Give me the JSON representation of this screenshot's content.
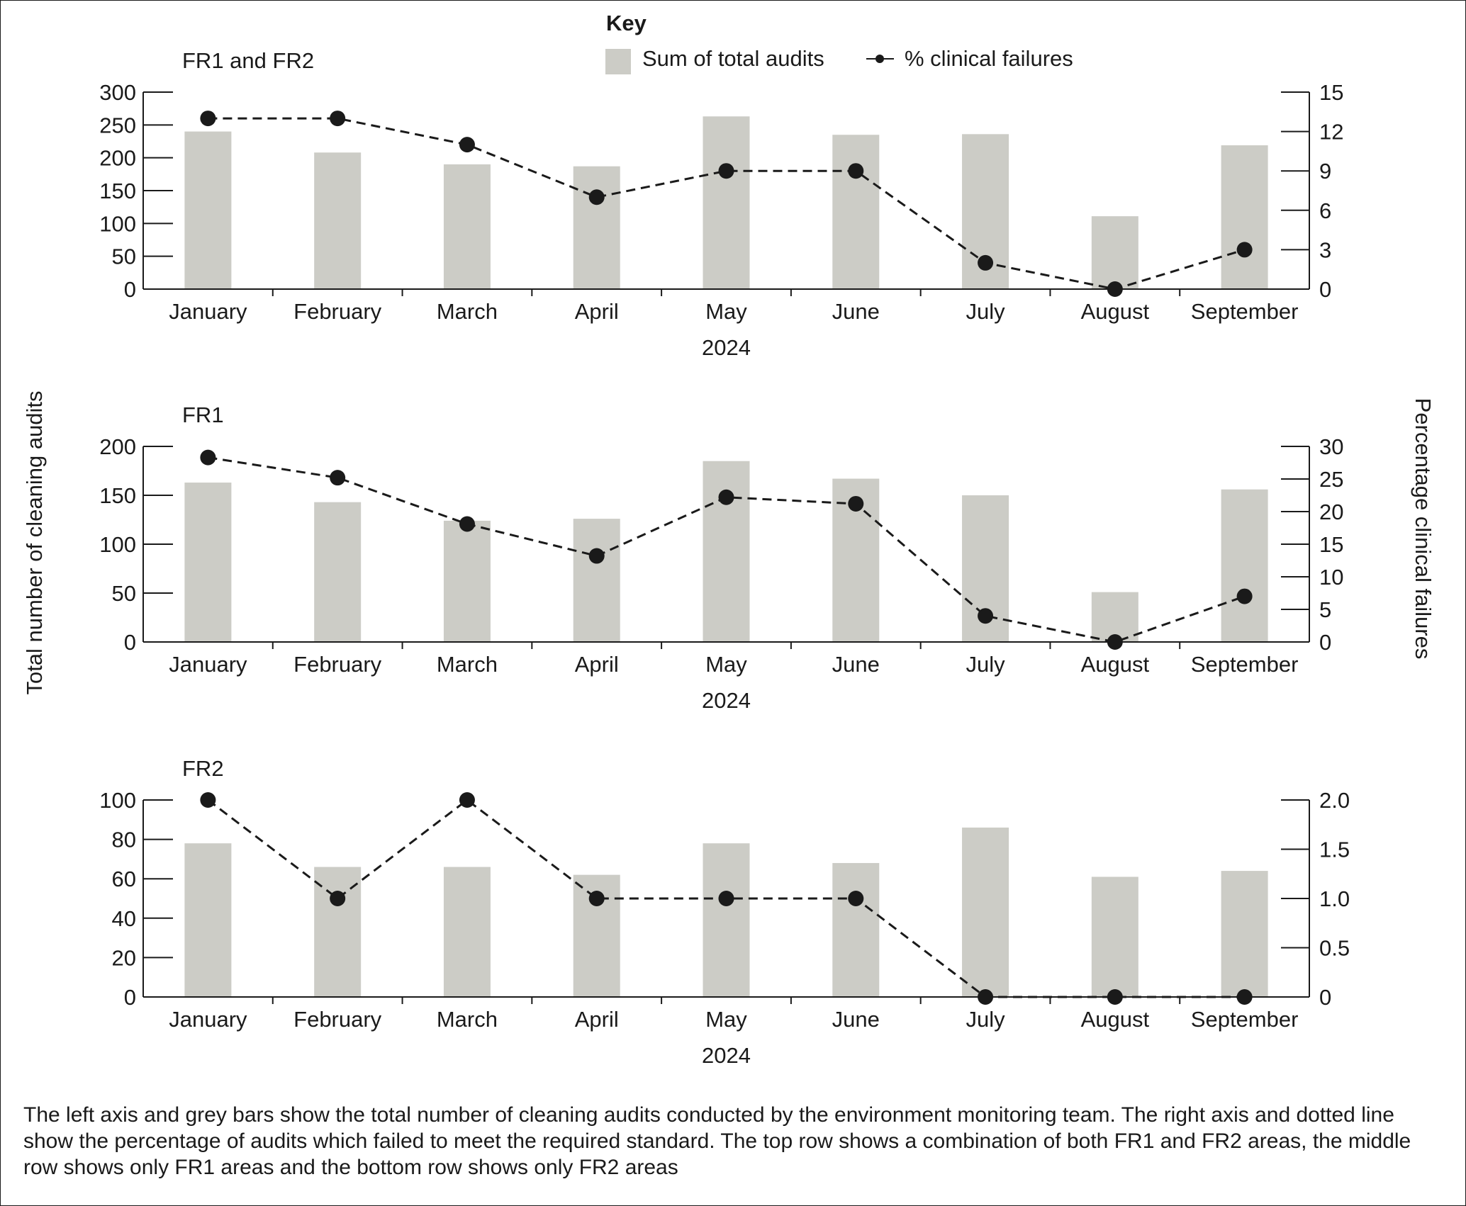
{
  "colors": {
    "bar": "#ccccc6",
    "line": "#1a1a1a",
    "axis": "#1a1a1a"
  },
  "legend": {
    "heading": "Key",
    "bar_label": "Sum of total audits",
    "line_label": "% clinical failures"
  },
  "axis_titles": {
    "left": "Total number of cleaning audits",
    "right": "Percentage clinical failures"
  },
  "caption": "The left axis and grey bars show the total number of cleaning audits conducted by the environment monitoring team. The right axis and dotted line show the percentage of audits which failed to meet the required standard. The top row shows a combination of both FR1 and FR2 areas, the middle row shows only FR1 areas and the bottom row shows only FR2 areas",
  "chart_data": [
    {
      "type": "bar+line",
      "title": "FR1 and FR2",
      "xlabel": "2024",
      "categories": [
        "January",
        "February",
        "March",
        "April",
        "May",
        "June",
        "July",
        "August",
        "September"
      ],
      "bars": {
        "name": "Sum of total audits",
        "values": [
          240,
          208,
          190,
          187,
          263,
          235,
          236,
          111,
          219
        ]
      },
      "line": {
        "name": "% clinical failures",
        "values": [
          13,
          13,
          11,
          7,
          9,
          9,
          2,
          0,
          3
        ]
      },
      "left_axis": {
        "ylim": [
          0,
          300
        ],
        "ticks": [
          0,
          50,
          100,
          150,
          200,
          250,
          300
        ],
        "tick_labels": [
          "0",
          "50",
          "100",
          "150",
          "200",
          "250",
          "300"
        ]
      },
      "right_axis": {
        "ylim": [
          0,
          15
        ],
        "ticks": [
          0,
          3,
          6,
          9,
          12,
          15
        ],
        "tick_labels": [
          "0",
          "3",
          "6",
          "9",
          "12",
          "15"
        ]
      }
    },
    {
      "type": "bar+line",
      "title": "FR1",
      "xlabel": "2024",
      "categories": [
        "January",
        "February",
        "March",
        "April",
        "May",
        "June",
        "July",
        "August",
        "September"
      ],
      "bars": {
        "name": "Sum of total audits",
        "values": [
          163,
          143,
          124,
          126,
          185,
          167,
          150,
          51,
          156
        ]
      },
      "line": {
        "name": "% clinical failures",
        "values": [
          28.3,
          25.2,
          18.1,
          13.2,
          22.2,
          21.2,
          4,
          0,
          7
        ]
      },
      "left_axis": {
        "ylim": [
          0,
          200
        ],
        "ticks": [
          0,
          50,
          100,
          150,
          200
        ],
        "tick_labels": [
          "0",
          "50",
          "100",
          "150",
          "200"
        ]
      },
      "right_axis": {
        "ylim": [
          0,
          30
        ],
        "ticks": [
          0,
          5,
          10,
          15,
          20,
          25,
          30
        ],
        "tick_labels": [
          "0",
          "5",
          "10",
          "15",
          "20",
          "25",
          "30"
        ]
      }
    },
    {
      "type": "bar+line",
      "title": "FR2",
      "xlabel": "2024",
      "categories": [
        "January",
        "February",
        "March",
        "April",
        "May",
        "June",
        "July",
        "August",
        "September"
      ],
      "bars": {
        "name": "Sum of total audits",
        "values": [
          78,
          66,
          66,
          62,
          78,
          68,
          86,
          61,
          64
        ]
      },
      "line": {
        "name": "% clinical failures",
        "values": [
          2,
          1,
          2,
          1,
          1,
          1,
          0,
          0,
          0
        ]
      },
      "left_axis": {
        "ylim": [
          0,
          100
        ],
        "ticks": [
          0,
          20,
          40,
          60,
          80,
          100
        ],
        "tick_labels": [
          "0",
          "20",
          "40",
          "60",
          "80",
          "100"
        ]
      },
      "right_axis": {
        "ylim": [
          0,
          2
        ],
        "ticks": [
          0,
          0.5,
          1,
          1.5,
          2
        ],
        "tick_labels": [
          "0",
          "0.5",
          "1.0",
          "1.5",
          "2.0"
        ]
      }
    }
  ]
}
